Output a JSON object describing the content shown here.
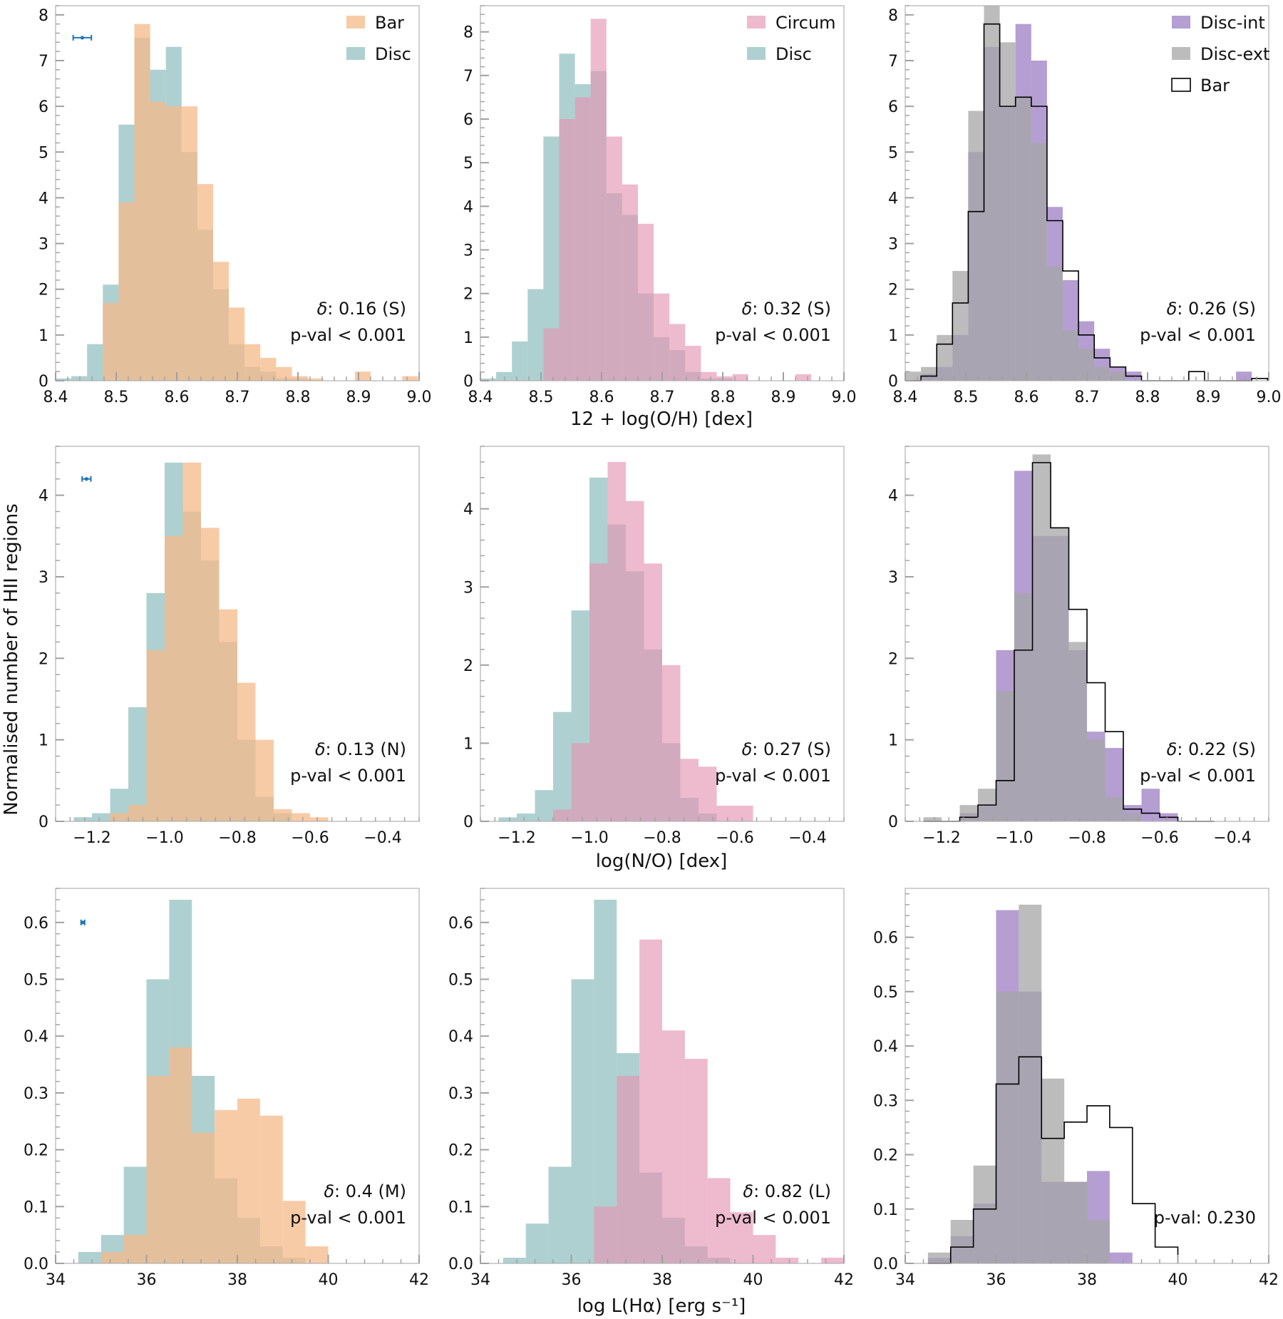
{
  "figure": {
    "ylabel": "Normalised number of HII regions",
    "row_xlabels": [
      "12 + log(O/H) [dex]",
      "log(N/O) [dex]",
      "log L(Hα) [erg s⁻¹]"
    ]
  },
  "colors": {
    "Bar": "#f6b98a",
    "Disc": "#8cbcbc",
    "Circum": "#e595b2",
    "Disc-int": "#9b7ec3",
    "Disc-ext": "#a6a6a6",
    "BarStep": "#000000",
    "errorbar": "#1f77b4"
  },
  "chart_data": [
    {
      "id": "oh-bar-disc",
      "type": "histogram",
      "row": 0,
      "col": 0,
      "xlim": [
        8.4,
        9.0
      ],
      "ylim": [
        0,
        8.2
      ],
      "xticks": [
        "8.4",
        "8.5",
        "8.6",
        "8.7",
        "8.8",
        "8.9",
        "9.0"
      ],
      "xtick_values": [
        8.4,
        8.5,
        8.6,
        8.7,
        8.8,
        8.9,
        9.0
      ],
      "yticks": [
        "0",
        "1",
        "2",
        "3",
        "4",
        "5",
        "6",
        "7",
        "8"
      ],
      "ytick_values": [
        0,
        1,
        2,
        3,
        4,
        5,
        6,
        7,
        8
      ],
      "bin_edges": [
        8.4,
        8.426,
        8.452,
        8.478,
        8.504,
        8.53,
        8.556,
        8.582,
        8.608,
        8.634,
        8.66,
        8.686,
        8.712,
        8.738,
        8.764,
        8.79,
        8.816,
        8.842,
        8.868,
        8.894,
        8.92,
        8.946,
        8.972,
        8.998
      ],
      "series": [
        {
          "name": "Disc",
          "style": "filled",
          "values": [
            0.05,
            0.1,
            0.8,
            2.1,
            5.6,
            7.5,
            6.8,
            7.3,
            5.0,
            3.3,
            2.0,
            0.8,
            0.3,
            0.2,
            0.05,
            0.05,
            0.0,
            0.0,
            0.0,
            0.0,
            0.0,
            0.0,
            0.0
          ]
        },
        {
          "name": "Bar",
          "style": "filled",
          "values": [
            0.0,
            0.0,
            0.0,
            1.7,
            3.9,
            7.8,
            6.1,
            6.0,
            6.0,
            4.3,
            2.6,
            1.6,
            0.8,
            0.5,
            0.3,
            0.1,
            0.05,
            0.0,
            0.0,
            0.2,
            0.0,
            0.0,
            0.1
          ]
        }
      ],
      "legend": [
        {
          "label": "Bar",
          "color": "Bar"
        },
        {
          "label": "Disc",
          "color": "Disc"
        }
      ],
      "annotation": {
        "delta": "0.16 (S)",
        "pval": "p-val < 0.001"
      },
      "errorbar": {
        "x": 8.444,
        "xerr": 0.015,
        "y": 7.5
      }
    },
    {
      "id": "oh-circum-disc",
      "type": "histogram",
      "row": 0,
      "col": 1,
      "xlim": [
        8.4,
        9.0
      ],
      "ylim": [
        0,
        8.6
      ],
      "xticks": [
        "8.4",
        "8.5",
        "8.6",
        "8.7",
        "8.8",
        "8.9",
        "9.0"
      ],
      "xtick_values": [
        8.4,
        8.5,
        8.6,
        8.7,
        8.8,
        8.9,
        9.0
      ],
      "yticks": [
        "0",
        "1",
        "2",
        "3",
        "4",
        "5",
        "6",
        "7",
        "8"
      ],
      "ytick_values": [
        0,
        1,
        2,
        3,
        4,
        5,
        6,
        7,
        8
      ],
      "bin_edges": [
        8.4,
        8.426,
        8.452,
        8.478,
        8.504,
        8.53,
        8.556,
        8.582,
        8.608,
        8.634,
        8.66,
        8.686,
        8.712,
        8.738,
        8.764,
        8.79,
        8.816,
        8.842,
        8.868,
        8.894,
        8.92,
        8.946,
        8.972,
        8.998
      ],
      "series": [
        {
          "name": "Disc",
          "style": "filled",
          "values": [
            0.05,
            0.2,
            0.9,
            2.1,
            5.6,
            7.5,
            6.8,
            7.1,
            4.3,
            3.8,
            2.0,
            1.0,
            0.7,
            0.2,
            0.05,
            0.05,
            0.0,
            0.0,
            0.0,
            0.0,
            0.0,
            0.0,
            0.0
          ]
        },
        {
          "name": "Circum",
          "style": "filled",
          "values": [
            0.0,
            0.0,
            0.0,
            0.0,
            1.2,
            6.0,
            6.5,
            8.3,
            5.6,
            4.5,
            3.6,
            2.0,
            1.3,
            0.8,
            0.2,
            0.1,
            0.15,
            0.0,
            0.0,
            0.0,
            0.15,
            0.0,
            0.0
          ]
        }
      ],
      "legend": [
        {
          "label": "Circum",
          "color": "Circum"
        },
        {
          "label": "Disc",
          "color": "Disc"
        }
      ],
      "annotation": {
        "delta": "0.32 (S)",
        "pval": "p-val < 0.001"
      }
    },
    {
      "id": "oh-disc-split",
      "type": "histogram",
      "row": 0,
      "col": 2,
      "xlim": [
        8.4,
        9.0
      ],
      "ylim": [
        0,
        8.2
      ],
      "xticks": [
        "8.4",
        "8.5",
        "8.6",
        "8.7",
        "8.8",
        "8.9",
        "9.0"
      ],
      "xtick_values": [
        8.4,
        8.5,
        8.6,
        8.7,
        8.8,
        8.9,
        9.0
      ],
      "yticks": [
        "0",
        "1",
        "2",
        "3",
        "4",
        "5",
        "6",
        "7",
        "8"
      ],
      "ytick_values": [
        0,
        1,
        2,
        3,
        4,
        5,
        6,
        7,
        8
      ],
      "bin_edges": [
        8.4,
        8.426,
        8.452,
        8.478,
        8.504,
        8.53,
        8.556,
        8.582,
        8.608,
        8.634,
        8.66,
        8.686,
        8.712,
        8.738,
        8.764,
        8.79,
        8.816,
        8.842,
        8.868,
        8.894,
        8.92,
        8.946,
        8.972,
        8.998
      ],
      "series": [
        {
          "name": "Disc-int",
          "style": "filled",
          "values": [
            0.0,
            0.15,
            0.3,
            1.0,
            5.0,
            7.3,
            6.0,
            7.8,
            7.0,
            3.8,
            2.2,
            1.3,
            0.7,
            0.3,
            0.2,
            0.0,
            0.0,
            0.0,
            0.0,
            0.0,
            0.0,
            0.2,
            0.0
          ]
        },
        {
          "name": "Disc-ext",
          "style": "filled",
          "values": [
            0.2,
            0.3,
            1.0,
            2.4,
            5.9,
            8.2,
            7.4,
            6.2,
            5.2,
            2.5,
            1.1,
            0.7,
            0.3,
            0.2,
            0.0,
            0.0,
            0.0,
            0.0,
            0.0,
            0.0,
            0.0,
            0.0,
            0.0
          ]
        },
        {
          "name": "Bar",
          "style": "step",
          "values": [
            0.0,
            0.1,
            0.8,
            1.7,
            3.7,
            7.8,
            6.0,
            6.2,
            6.0,
            3.5,
            2.4,
            1.0,
            0.5,
            0.3,
            0.1,
            0.0,
            0.0,
            0.0,
            0.2,
            0.0,
            0.0,
            0.0,
            0.05
          ]
        }
      ],
      "legend": [
        {
          "label": "Disc-int",
          "color": "Disc-int"
        },
        {
          "label": "Disc-ext",
          "color": "Disc-ext"
        },
        {
          "label": "Bar",
          "color": "BarStep",
          "step": true
        }
      ],
      "annotation": {
        "delta": "0.26 (S)",
        "pval": "p-val < 0.001"
      }
    },
    {
      "id": "no-bar-disc",
      "type": "histogram",
      "row": 1,
      "col": 0,
      "xlim": [
        -1.3,
        -0.3
      ],
      "ylim": [
        0,
        4.6
      ],
      "xticks": [
        "−1.2",
        "−1.0",
        "−0.8",
        "−0.6",
        "−0.4"
      ],
      "xtick_values": [
        -1.2,
        -1.0,
        -0.8,
        -0.6,
        -0.4
      ],
      "yticks": [
        "0",
        "1",
        "2",
        "3",
        "4"
      ],
      "ytick_values": [
        0,
        1,
        2,
        3,
        4
      ],
      "bin_edges": [
        -1.25,
        -1.2,
        -1.15,
        -1.1,
        -1.05,
        -1.0,
        -0.95,
        -0.9,
        -0.85,
        -0.8,
        -0.75,
        -0.7,
        -0.65,
        -0.6,
        -0.55,
        -0.5,
        -0.45
      ],
      "series": [
        {
          "name": "Disc",
          "style": "filled",
          "values": [
            0.05,
            0.1,
            0.4,
            1.4,
            2.8,
            4.4,
            3.8,
            3.2,
            2.2,
            1.0,
            0.3,
            0.1,
            0.0,
            0.0,
            0.0,
            0.0
          ]
        },
        {
          "name": "Bar",
          "style": "filled",
          "values": [
            0.0,
            0.0,
            0.1,
            0.2,
            2.1,
            3.5,
            4.4,
            3.6,
            2.6,
            1.7,
            1.0,
            0.15,
            0.1,
            0.05,
            0.0,
            0.0
          ]
        }
      ],
      "legend": [],
      "annotation": {
        "delta": "0.13 (N)",
        "pval": "p-val < 0.001"
      },
      "errorbar": {
        "x": -1.215,
        "xerr": 0.012,
        "y": 4.2
      }
    },
    {
      "id": "no-circum-disc",
      "type": "histogram",
      "row": 1,
      "col": 1,
      "xlim": [
        -1.3,
        -0.3
      ],
      "ylim": [
        0,
        4.8
      ],
      "xticks": [
        "−1.2",
        "−1.0",
        "−0.8",
        "−0.6",
        "−0.4"
      ],
      "xtick_values": [
        -1.2,
        -1.0,
        -0.8,
        -0.6,
        -0.4
      ],
      "yticks": [
        "0",
        "1",
        "2",
        "3",
        "4"
      ],
      "ytick_values": [
        0,
        1,
        2,
        3,
        4
      ],
      "bin_edges": [
        -1.25,
        -1.2,
        -1.15,
        -1.1,
        -1.05,
        -1.0,
        -0.95,
        -0.9,
        -0.85,
        -0.8,
        -0.75,
        -0.7,
        -0.65,
        -0.6,
        -0.55,
        -0.5,
        -0.45
      ],
      "series": [
        {
          "name": "Disc",
          "style": "filled",
          "values": [
            0.05,
            0.1,
            0.4,
            1.4,
            2.7,
            4.4,
            3.8,
            3.2,
            2.2,
            1.0,
            0.3,
            0.1,
            0.0,
            0.0,
            0.0,
            0.0
          ]
        },
        {
          "name": "Circum",
          "style": "filled",
          "values": [
            0.0,
            0.0,
            0.0,
            0.15,
            1.0,
            3.3,
            4.6,
            4.1,
            3.3,
            2.0,
            0.8,
            0.7,
            0.2,
            0.2,
            0.0,
            0.0
          ]
        }
      ],
      "legend": [],
      "annotation": {
        "delta": "0.27 (S)",
        "pval": "p-val < 0.001"
      }
    },
    {
      "id": "no-disc-split",
      "type": "histogram",
      "row": 1,
      "col": 2,
      "xlim": [
        -1.3,
        -0.3
      ],
      "ylim": [
        0,
        4.6
      ],
      "xticks": [
        "−1.2",
        "−1.0",
        "−0.8",
        "−0.6",
        "−0.4"
      ],
      "xtick_values": [
        -1.2,
        -1.0,
        -0.8,
        -0.6,
        -0.4
      ],
      "yticks": [
        "0",
        "1",
        "2",
        "3",
        "4"
      ],
      "ytick_values": [
        0,
        1,
        2,
        3,
        4
      ],
      "bin_edges": [
        -1.25,
        -1.2,
        -1.15,
        -1.1,
        -1.05,
        -1.0,
        -0.95,
        -0.9,
        -0.85,
        -0.8,
        -0.75,
        -0.7,
        -0.65,
        -0.6,
        -0.55,
        -0.5,
        -0.45
      ],
      "series": [
        {
          "name": "Disc-int",
          "style": "filled",
          "values": [
            0.0,
            0.0,
            0.1,
            0.2,
            2.1,
            4.3,
            3.5,
            3.5,
            2.1,
            1.1,
            0.9,
            0.2,
            0.4,
            0.1,
            0.0,
            0.0
          ]
        },
        {
          "name": "Disc-ext",
          "style": "filled",
          "values": [
            0.05,
            0.0,
            0.2,
            0.4,
            1.6,
            2.8,
            4.5,
            3.6,
            2.2,
            1.0,
            0.3,
            0.1,
            0.0,
            0.0,
            0.0,
            0.0
          ]
        },
        {
          "name": "Bar",
          "style": "step",
          "values": [
            0.0,
            0.0,
            0.05,
            0.2,
            0.5,
            2.1,
            4.4,
            3.6,
            2.6,
            1.7,
            1.1,
            0.15,
            0.1,
            0.05,
            0.0,
            0.0
          ]
        }
      ],
      "legend": [],
      "annotation": {
        "delta": "0.22 (S)",
        "pval": "p-val < 0.001"
      }
    },
    {
      "id": "ha-bar-disc",
      "type": "histogram",
      "row": 2,
      "col": 0,
      "xlim": [
        34,
        42
      ],
      "ylim": [
        0,
        0.66
      ],
      "xticks": [
        "34",
        "36",
        "38",
        "40",
        "42"
      ],
      "xtick_values": [
        34,
        36,
        38,
        40,
        42
      ],
      "yticks": [
        "0.0",
        "0.1",
        "0.2",
        "0.3",
        "0.4",
        "0.5",
        "0.6"
      ],
      "ytick_values": [
        0,
        0.1,
        0.2,
        0.3,
        0.4,
        0.5,
        0.6
      ],
      "bin_edges": [
        34.5,
        35.0,
        35.5,
        36.0,
        36.5,
        37.0,
        37.5,
        38.0,
        38.5,
        39.0,
        39.5,
        40.0
      ],
      "series": [
        {
          "name": "Disc",
          "style": "filled",
          "values": [
            0.02,
            0.05,
            0.17,
            0.5,
            0.64,
            0.33,
            0.15,
            0.08,
            0.03,
            0.01,
            0.0
          ]
        },
        {
          "name": "Bar",
          "style": "filled",
          "values": [
            0.0,
            0.02,
            0.05,
            0.33,
            0.38,
            0.23,
            0.27,
            0.29,
            0.26,
            0.11,
            0.03
          ]
        }
      ],
      "legend": [],
      "annotation": {
        "delta": "0.4 (M)",
        "pval": "p-val < 0.001"
      },
      "errorbar": {
        "x": 34.6,
        "xerr": 0.04,
        "y": 0.6
      }
    },
    {
      "id": "ha-circum-disc",
      "type": "histogram",
      "row": 2,
      "col": 1,
      "xlim": [
        34,
        42
      ],
      "ylim": [
        0,
        0.66
      ],
      "xticks": [
        "34",
        "36",
        "38",
        "40",
        "42"
      ],
      "xtick_values": [
        34,
        36,
        38,
        40,
        42
      ],
      "yticks": [
        "0.0",
        "0.1",
        "0.2",
        "0.3",
        "0.4",
        "0.5",
        "0.6"
      ],
      "ytick_values": [
        0,
        0.1,
        0.2,
        0.3,
        0.4,
        0.5,
        0.6
      ],
      "bin_edges": [
        34.5,
        35.0,
        35.5,
        36.0,
        36.5,
        37.0,
        37.5,
        38.0,
        38.5,
        39.0,
        39.5,
        40.0,
        40.5,
        41.0,
        41.5,
        42.0
      ],
      "series": [
        {
          "name": "Disc",
          "style": "filled",
          "values": [
            0.01,
            0.07,
            0.17,
            0.5,
            0.64,
            0.37,
            0.16,
            0.08,
            0.03,
            0.01,
            0.0,
            0.0,
            0.0,
            0.0,
            0.0
          ]
        },
        {
          "name": "Circum",
          "style": "filled",
          "values": [
            0.0,
            0.0,
            0.0,
            0.0,
            0.1,
            0.33,
            0.57,
            0.41,
            0.36,
            0.15,
            0.09,
            0.05,
            0.01,
            0.0,
            0.01
          ]
        }
      ],
      "legend": [],
      "annotation": {
        "delta": "0.82 (L)",
        "pval": "p-val < 0.001"
      }
    },
    {
      "id": "ha-disc-split",
      "type": "histogram",
      "row": 2,
      "col": 2,
      "xlim": [
        34,
        42
      ],
      "ylim": [
        0,
        0.69
      ],
      "xticks": [
        "34",
        "36",
        "38",
        "40",
        "42"
      ],
      "xtick_values": [
        34,
        36,
        38,
        40,
        42
      ],
      "yticks": [
        "0.0",
        "0.1",
        "0.2",
        "0.3",
        "0.4",
        "0.5",
        "0.6"
      ],
      "ytick_values": [
        0,
        0.1,
        0.2,
        0.3,
        0.4,
        0.5,
        0.6
      ],
      "bin_edges": [
        34.5,
        35.0,
        35.5,
        36.0,
        36.5,
        37.0,
        37.5,
        38.0,
        38.5,
        39.0,
        39.5,
        40.0
      ],
      "series": [
        {
          "name": "Disc-int",
          "style": "filled",
          "values": [
            0.01,
            0.05,
            0.11,
            0.65,
            0.5,
            0.15,
            0.15,
            0.17,
            0.02,
            0.0,
            0.0
          ]
        },
        {
          "name": "Disc-ext",
          "style": "filled",
          "values": [
            0.02,
            0.08,
            0.18,
            0.5,
            0.66,
            0.34,
            0.15,
            0.08,
            0.0,
            0.0,
            0.0
          ]
        },
        {
          "name": "Bar",
          "style": "step",
          "values": [
            0.0,
            0.03,
            0.1,
            0.33,
            0.38,
            0.23,
            0.26,
            0.29,
            0.25,
            0.11,
            0.03
          ]
        }
      ],
      "legend": [],
      "annotation": {
        "pval": "p-val: 0.230"
      }
    }
  ]
}
